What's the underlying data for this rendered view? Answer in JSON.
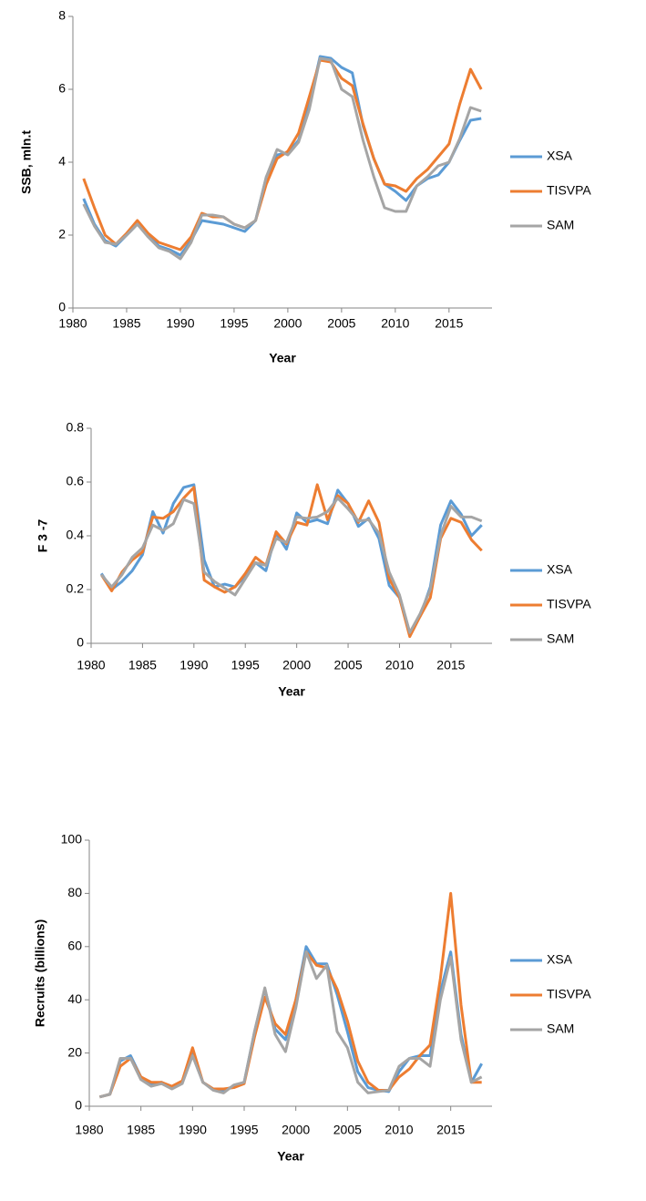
{
  "chart_data": [
    {
      "type": "line",
      "y_label": "SSB, mln.t",
      "x_label": "Year",
      "x": [
        1981,
        1982,
        1983,
        1984,
        1985,
        1986,
        1987,
        1988,
        1989,
        1990,
        1991,
        1992,
        1993,
        1994,
        1995,
        1996,
        1997,
        1998,
        1999,
        2000,
        2001,
        2002,
        2003,
        2004,
        2005,
        2006,
        2007,
        2008,
        2009,
        2010,
        2011,
        2012,
        2013,
        2014,
        2015,
        2016,
        2017,
        2018
      ],
      "xlim": [
        1980,
        2019
      ],
      "xticks": [
        1980,
        1985,
        1990,
        1995,
        2000,
        2005,
        2010,
        2015
      ],
      "ylim": [
        0,
        8
      ],
      "yticks": [
        0,
        2,
        4,
        6,
        8
      ],
      "grid": false,
      "legend": "right",
      "series": [
        {
          "name": "XSA",
          "color": "#5b9bd5",
          "values": [
            3.0,
            2.3,
            1.85,
            1.7,
            2.0,
            2.3,
            2.0,
            1.7,
            1.6,
            1.45,
            1.85,
            2.4,
            2.35,
            2.3,
            2.2,
            2.1,
            2.4,
            3.6,
            4.2,
            4.25,
            4.6,
            5.6,
            6.9,
            6.85,
            6.6,
            6.45,
            5.0,
            4.1,
            3.4,
            3.2,
            2.95,
            3.35,
            3.55,
            3.65,
            4.0,
            4.6,
            5.15,
            5.2
          ]
        },
        {
          "name": "TISVPA",
          "color": "#ed7d31",
          "values": [
            3.55,
            2.75,
            2.0,
            1.75,
            2.05,
            2.4,
            2.05,
            1.8,
            1.7,
            1.6,
            1.95,
            2.6,
            2.5,
            2.5,
            2.3,
            2.2,
            2.4,
            3.4,
            4.1,
            4.3,
            4.8,
            5.8,
            6.8,
            6.75,
            6.3,
            6.1,
            5.05,
            4.1,
            3.4,
            3.35,
            3.2,
            3.55,
            3.8,
            4.15,
            4.5,
            5.6,
            6.55,
            6.0
          ]
        },
        {
          "name": "SAM",
          "color": "#a5a5a5",
          "values": [
            2.85,
            2.25,
            1.8,
            1.75,
            2.0,
            2.3,
            1.95,
            1.65,
            1.55,
            1.35,
            1.8,
            2.55,
            2.55,
            2.5,
            2.3,
            2.2,
            2.4,
            3.6,
            4.35,
            4.2,
            4.55,
            5.45,
            6.85,
            6.8,
            6.0,
            5.8,
            4.6,
            3.6,
            2.75,
            2.65,
            2.65,
            3.35,
            3.6,
            3.9,
            4.0,
            4.65,
            5.5,
            5.4
          ]
        }
      ]
    },
    {
      "type": "line",
      "y_label": "F 3 -7",
      "x_label": "Year",
      "x": [
        1981,
        1982,
        1983,
        1984,
        1985,
        1986,
        1987,
        1988,
        1989,
        1990,
        1991,
        1992,
        1993,
        1994,
        1995,
        1996,
        1997,
        1998,
        1999,
        2000,
        2001,
        2002,
        2003,
        2004,
        2005,
        2006,
        2007,
        2008,
        2009,
        2010,
        2011,
        2012,
        2013,
        2014,
        2015,
        2016,
        2017,
        2018
      ],
      "xlim": [
        1980,
        2019
      ],
      "xticks": [
        1980,
        1985,
        1990,
        1995,
        2000,
        2005,
        2010,
        2015
      ],
      "ylim": [
        0,
        0.8
      ],
      "yticks": [
        0,
        0.2,
        0.4,
        0.6,
        0.8
      ],
      "grid": false,
      "legend": "right",
      "series": [
        {
          "name": "XSA",
          "color": "#5b9bd5",
          "values": [
            0.26,
            0.2,
            0.23,
            0.27,
            0.33,
            0.49,
            0.41,
            0.52,
            0.58,
            0.59,
            0.31,
            0.21,
            0.22,
            0.21,
            0.25,
            0.3,
            0.27,
            0.41,
            0.35,
            0.485,
            0.45,
            0.46,
            0.445,
            0.57,
            0.52,
            0.435,
            0.465,
            0.39,
            0.215,
            0.17,
            0.04,
            0.1,
            0.21,
            0.44,
            0.53,
            0.48,
            0.4,
            0.44
          ]
        },
        {
          "name": "TISVPA",
          "color": "#ed7d31",
          "values": [
            0.255,
            0.195,
            0.265,
            0.31,
            0.34,
            0.47,
            0.465,
            0.49,
            0.54,
            0.58,
            0.235,
            0.21,
            0.19,
            0.21,
            0.26,
            0.32,
            0.29,
            0.415,
            0.37,
            0.45,
            0.44,
            0.59,
            0.46,
            0.55,
            0.52,
            0.45,
            0.53,
            0.45,
            0.24,
            0.17,
            0.025,
            0.1,
            0.17,
            0.39,
            0.465,
            0.45,
            0.385,
            0.345
          ]
        },
        {
          "name": "SAM",
          "color": "#a5a5a5",
          "values": [
            0.255,
            0.21,
            0.255,
            0.32,
            0.355,
            0.44,
            0.42,
            0.445,
            0.535,
            0.52,
            0.265,
            0.23,
            0.205,
            0.18,
            0.24,
            0.3,
            0.29,
            0.39,
            0.375,
            0.47,
            0.465,
            0.47,
            0.49,
            0.54,
            0.5,
            0.455,
            0.46,
            0.41,
            0.265,
            0.18,
            0.04,
            0.11,
            0.2,
            0.4,
            0.51,
            0.47,
            0.47,
            0.455
          ]
        }
      ]
    },
    {
      "type": "line",
      "y_label": "Recruits (billions)",
      "x_label": "Year",
      "x": [
        1981,
        1982,
        1983,
        1984,
        1985,
        1986,
        1987,
        1988,
        1989,
        1990,
        1991,
        1992,
        1993,
        1994,
        1995,
        1996,
        1997,
        1998,
        1999,
        2000,
        2001,
        2002,
        2003,
        2004,
        2005,
        2006,
        2007,
        2008,
        2009,
        2010,
        2011,
        2012,
        2013,
        2014,
        2015,
        2016,
        2017,
        2018
      ],
      "xlim": [
        1980,
        2019
      ],
      "xticks": [
        1980,
        1985,
        1990,
        1995,
        2000,
        2005,
        2010,
        2015
      ],
      "ylim": [
        0,
        100
      ],
      "yticks": [
        0,
        20,
        40,
        60,
        80,
        100
      ],
      "grid": false,
      "legend": "right",
      "series": [
        {
          "name": "XSA",
          "color": "#5b9bd5",
          "values": [
            3.5,
            4.5,
            17,
            19,
            11,
            8,
            9,
            7,
            9,
            20,
            9,
            6.5,
            6,
            7.5,
            9,
            28,
            44,
            29,
            25,
            40,
            60,
            53.5,
            53.5,
            42,
            28,
            13,
            7,
            6,
            5.5,
            13,
            18,
            19,
            19,
            43,
            58,
            27,
            9,
            16
          ]
        },
        {
          "name": "TISVPA",
          "color": "#ed7d31",
          "values": [
            3.5,
            4.5,
            15,
            18,
            11,
            9,
            9,
            7.5,
            9.5,
            22,
            9,
            6.5,
            6.5,
            7,
            8.5,
            26,
            41,
            31,
            27,
            40,
            58,
            53,
            52,
            44,
            32,
            17,
            9,
            6,
            6,
            11,
            14,
            19,
            23,
            48,
            80,
            38,
            9,
            9
          ]
        },
        {
          "name": "SAM",
          "color": "#a5a5a5",
          "values": [
            3.5,
            4.5,
            18,
            18,
            10,
            7.5,
            8.5,
            6.5,
            8.5,
            19,
            9,
            6,
            5,
            8,
            9,
            28,
            44.5,
            27,
            20.5,
            37,
            58,
            48,
            53,
            28,
            22,
            9,
            5,
            5.5,
            6,
            15,
            18,
            18,
            15,
            40,
            56,
            25,
            9,
            11
          ]
        }
      ]
    }
  ]
}
